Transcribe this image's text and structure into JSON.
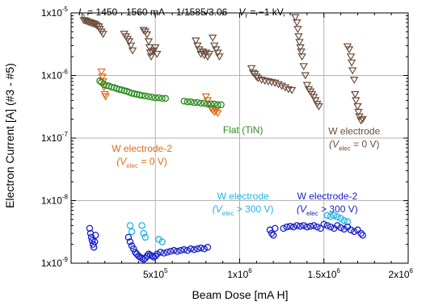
{
  "chart_data": {
    "type": "scatter",
    "title_parts": {
      "current_sym": "I",
      "current_sub": "b",
      "current_val": " = 1450 - 1560 mA",
      "fill": "1/1585/3.06",
      "volt_sym": "V",
      "volt_sub": "r",
      "volt_val": " = −1 kV,"
    },
    "xlabel": "Beam Dose [mA H]",
    "ylabel": "Electron Current [A] (#3 - #5)",
    "xlim": [
      0,
      2000000
    ],
    "ylim": [
      1e-09,
      1e-05
    ],
    "y_log": true,
    "grid": true,
    "x_ticks": [
      {
        "value": 0,
        "mant": "",
        "exp": ""
      },
      {
        "value": 500000,
        "mant": "5x10",
        "exp": "5"
      },
      {
        "value": 1000000,
        "mant": "1x10",
        "exp": "6"
      },
      {
        "value": 1500000,
        "mant": "1.5x10",
        "exp": "6"
      },
      {
        "value": 2000000,
        "mant": "2x10",
        "exp": "6"
      }
    ],
    "y_ticks": [
      {
        "value": 1e-09,
        "mant": "1x10",
        "exp": "-9"
      },
      {
        "value": 1e-08,
        "mant": "1x10",
        "exp": "-8"
      },
      {
        "value": 1e-07,
        "mant": "1x10",
        "exp": "-7"
      },
      {
        "value": 1e-06,
        "mant": "1x10",
        "exp": "-6"
      },
      {
        "value": 1e-05,
        "mant": "1x10",
        "exp": "-5"
      }
    ],
    "annotations": [
      {
        "name": "label-flat-tin",
        "color": "#2e8b22",
        "x": 1020000,
        "y": 1.2e-07,
        "lines": [
          {
            "text": "Flat (TiN)"
          }
        ]
      },
      {
        "name": "label-w-electrode-brown",
        "color": "#6b4c3b",
        "x": 1680000,
        "y": 1.15e-07,
        "lines": [
          {
            "text": "W electrode"
          },
          {
            "sym": "(V",
            "sub": "elec",
            "rest": " = 0 V)"
          }
        ]
      },
      {
        "name": "label-w-electrode2-orange",
        "color": "#e06a1b",
        "x": 420000,
        "y": 6e-08,
        "lines": [
          {
            "text": "W electrode-2"
          },
          {
            "sym": "(V",
            "sub": "elec",
            "rest": " = 0 V)"
          }
        ]
      },
      {
        "name": "label-w-electrode-cyan",
        "color": "#1fb4e6",
        "x": 1020000,
        "y": 1.05e-08,
        "lines": [
          {
            "text": "W electrode"
          },
          {
            "sym": "(V",
            "sub": "elec",
            "rest": " > 300 V)"
          }
        ]
      },
      {
        "name": "label-w-electrode2-blue",
        "color": "#1a22c8",
        "x": 1520000,
        "y": 1.05e-08,
        "lines": [
          {
            "text": "W electrode-2"
          },
          {
            "sym": "(V",
            "sub": "elec",
            "rest": " > 300 V)"
          }
        ]
      }
    ],
    "series": [
      {
        "color": "#6b4c3b",
        "marker": "triangle-down",
        "points": [
          [
            75000,
            7.6e-06
          ],
          [
            85000,
            7.5e-06
          ],
          [
            95000,
            7.3e-06
          ],
          [
            105000,
            7.1e-06
          ],
          [
            115000,
            7e-06
          ],
          [
            125000,
            6.8e-06
          ],
          [
            135000,
            6.7e-06
          ],
          [
            145000,
            6.5e-06
          ],
          [
            155000,
            6.2e-06
          ],
          [
            165000,
            6e-06
          ],
          [
            170000,
            5.5e-06
          ],
          [
            180000,
            5e-06
          ],
          [
            190000,
            4.6e-06
          ],
          [
            315000,
            4.6e-06
          ],
          [
            325000,
            4.2e-06
          ],
          [
            335000,
            3.8e-06
          ],
          [
            345000,
            3.5e-06
          ],
          [
            355000,
            3e-06
          ],
          [
            365000,
            2.5e-06
          ],
          [
            430000,
            5.3e-06
          ],
          [
            440000,
            5e-06
          ],
          [
            450000,
            4.5e-06
          ],
          [
            460000,
            3.5e-06
          ],
          [
            465000,
            2.8e-06
          ],
          [
            470000,
            2.3e-06
          ],
          [
            475000,
            2e-06
          ],
          [
            480000,
            2.4e-06
          ],
          [
            490000,
            2.5e-06
          ],
          [
            500000,
            2.8e-06
          ],
          [
            510000,
            2.2e-06
          ],
          [
            740000,
            3.6e-06
          ],
          [
            750000,
            3e-06
          ],
          [
            760000,
            2.6e-06
          ],
          [
            770000,
            2.2e-06
          ],
          [
            780000,
            2.4e-06
          ],
          [
            790000,
            2.1e-06
          ],
          [
            800000,
            2.3e-06
          ],
          [
            810000,
            2e-06
          ],
          [
            820000,
            2.2e-06
          ],
          [
            840000,
            4e-06
          ],
          [
            850000,
            3e-06
          ],
          [
            860000,
            2.6e-06
          ],
          [
            870000,
            2.3e-06
          ],
          [
            880000,
            2e-06
          ],
          [
            1070000,
            1.3e-06
          ],
          [
            1080000,
            1.1e-06
          ],
          [
            1090000,
            1.05e-06
          ],
          [
            1100000,
            9.5e-07
          ],
          [
            1110000,
            9e-07
          ],
          [
            1130000,
            8.5e-07
          ],
          [
            1150000,
            8.2e-07
          ],
          [
            1170000,
            8e-07
          ],
          [
            1190000,
            7.8e-07
          ],
          [
            1210000,
            7.6e-07
          ],
          [
            1230000,
            7.2e-07
          ],
          [
            1250000,
            6.8e-07
          ],
          [
            1270000,
            6.4e-07
          ],
          [
            1290000,
            6e-07
          ],
          [
            1310000,
            5.8e-07
          ],
          [
            1330000,
            8.5e-06
          ],
          [
            1340000,
            7e-06
          ],
          [
            1345000,
            5.5e-06
          ],
          [
            1350000,
            4.2e-06
          ],
          [
            1355000,
            3.4e-06
          ],
          [
            1360000,
            2.8e-06
          ],
          [
            1365000,
            2.4e-06
          ],
          [
            1370000,
            2e-06
          ],
          [
            1380000,
            1.4e-06
          ],
          [
            1390000,
            1e-06
          ],
          [
            1400000,
            7e-07
          ],
          [
            1410000,
            6e-07
          ],
          [
            1420000,
            5.5e-07
          ],
          [
            1430000,
            5e-07
          ],
          [
            1440000,
            4.5e-07
          ],
          [
            1450000,
            4e-07
          ],
          [
            1460000,
            3.5e-07
          ],
          [
            1470000,
            3.2e-07
          ],
          [
            1640000,
            2.9e-06
          ],
          [
            1650000,
            2.6e-06
          ],
          [
            1660000,
            2e-06
          ],
          [
            1665000,
            1.6e-06
          ],
          [
            1670000,
            1.2e-06
          ],
          [
            1680000,
            8.5e-07
          ],
          [
            1685000,
            5e-07
          ],
          [
            1690000,
            4e-07
          ],
          [
            1700000,
            3.2e-07
          ],
          [
            1705000,
            2.6e-07
          ],
          [
            1710000,
            2.2e-07
          ],
          [
            1720000,
            1.9e-07
          ],
          [
            1730000,
            2e-07
          ]
        ]
      },
      {
        "color": "#e06a1b",
        "marker": "triangle-down",
        "points": [
          [
            180000,
            1.15e-06
          ],
          [
            185000,
            9.5e-07
          ],
          [
            190000,
            8e-07
          ],
          [
            195000,
            6.5e-07
          ],
          [
            200000,
            5e-07
          ],
          [
            205000,
            4.6e-07
          ],
          [
            800000,
            4.6e-07
          ],
          [
            810000,
            4e-07
          ],
          [
            820000,
            3.5e-07
          ],
          [
            830000,
            3e-07
          ],
          [
            840000,
            2.8e-07
          ],
          [
            850000,
            2.6e-07
          ],
          [
            860000,
            2.7e-07
          ],
          [
            870000,
            2.5e-07
          ]
        ]
      },
      {
        "color": "#2e8b22",
        "marker": "circle",
        "points": [
          [
            170000,
            8.2e-07
          ],
          [
            180000,
            7.8e-07
          ],
          [
            195000,
            7.2e-07
          ],
          [
            210000,
            6.9e-07
          ],
          [
            225000,
            6.8e-07
          ],
          [
            240000,
            6.5e-07
          ],
          [
            255000,
            6.4e-07
          ],
          [
            270000,
            6.2e-07
          ],
          [
            285000,
            6e-07
          ],
          [
            300000,
            5.9e-07
          ],
          [
            315000,
            5.7e-07
          ],
          [
            330000,
            5.6e-07
          ],
          [
            345000,
            5.4e-07
          ],
          [
            360000,
            5.2e-07
          ],
          [
            375000,
            5.1e-07
          ],
          [
            390000,
            5e-07
          ],
          [
            405000,
            4.9e-07
          ],
          [
            420000,
            4.8e-07
          ],
          [
            440000,
            4.7e-07
          ],
          [
            460000,
            4.6e-07
          ],
          [
            480000,
            4.5e-07
          ],
          [
            500000,
            4.4e-07
          ],
          [
            520000,
            4.4e-07
          ],
          [
            540000,
            4.3e-07
          ],
          [
            560000,
            4.3e-07
          ],
          [
            670000,
            3.9e-07
          ],
          [
            690000,
            3.8e-07
          ],
          [
            710000,
            3.8e-07
          ],
          [
            730000,
            3.7e-07
          ],
          [
            750000,
            3.7e-07
          ],
          [
            770000,
            3.6e-07
          ],
          [
            790000,
            3.6e-07
          ],
          [
            810000,
            3.5e-07
          ],
          [
            830000,
            3.5e-07
          ],
          [
            850000,
            3.5e-07
          ],
          [
            870000,
            3.4e-07
          ],
          [
            890000,
            3.4e-07
          ]
        ]
      },
      {
        "color": "#1fb4e6",
        "marker": "circle",
        "points": [
          [
            350000,
            4e-09
          ],
          [
            360000,
            3.2e-09
          ],
          [
            420000,
            4e-09
          ],
          [
            430000,
            3e-09
          ],
          [
            440000,
            2.6e-09
          ],
          [
            520000,
            2.4e-09
          ],
          [
            540000,
            2.2e-09
          ],
          [
            1520000,
            5.8e-09
          ],
          [
            1540000,
            5.6e-09
          ],
          [
            1560000,
            5.8e-09
          ],
          [
            1580000,
            5.5e-09
          ],
          [
            1600000,
            5.2e-09
          ],
          [
            1620000,
            4.8e-09
          ],
          [
            1640000,
            4.6e-09
          ]
        ]
      },
      {
        "color": "#1a22c8",
        "marker": "circle",
        "points": [
          [
            110000,
            3.6e-09
          ],
          [
            115000,
            3e-09
          ],
          [
            120000,
            2.6e-09
          ],
          [
            125000,
            2.3e-09
          ],
          [
            130000,
            2e-09
          ],
          [
            135000,
            1.8e-09
          ],
          [
            140000,
            2.2e-09
          ],
          [
            145000,
            2.8e-09
          ],
          [
            340000,
            2.6e-09
          ],
          [
            350000,
            2.2e-09
          ],
          [
            360000,
            1.9e-09
          ],
          [
            370000,
            1.7e-09
          ],
          [
            380000,
            1.5e-09
          ],
          [
            390000,
            1.4e-09
          ],
          [
            400000,
            1.3e-09
          ],
          [
            410000,
            1.25e-09
          ],
          [
            420000,
            1.2e-09
          ],
          [
            430000,
            1.15e-09
          ],
          [
            440000,
            1.2e-09
          ],
          [
            450000,
            1.3e-09
          ],
          [
            460000,
            1.4e-09
          ],
          [
            470000,
            1.35e-09
          ],
          [
            480000,
            1.3e-09
          ],
          [
            490000,
            1.25e-09
          ],
          [
            500000,
            1.3e-09
          ],
          [
            510000,
            1.4e-09
          ],
          [
            530000,
            1.5e-09
          ],
          [
            550000,
            1.45e-09
          ],
          [
            570000,
            1.5e-09
          ],
          [
            590000,
            1.55e-09
          ],
          [
            610000,
            1.6e-09
          ],
          [
            630000,
            1.55e-09
          ],
          [
            650000,
            1.6e-09
          ],
          [
            670000,
            1.65e-09
          ],
          [
            690000,
            1.6e-09
          ],
          [
            710000,
            1.7e-09
          ],
          [
            730000,
            1.65e-09
          ],
          [
            750000,
            1.7e-09
          ],
          [
            770000,
            1.75e-09
          ],
          [
            790000,
            1.7e-09
          ],
          [
            810000,
            1.8e-09
          ],
          [
            1180000,
            3.4e-09
          ],
          [
            1190000,
            3e-09
          ],
          [
            1200000,
            2.8e-09
          ],
          [
            1210000,
            3.6e-09
          ],
          [
            1260000,
            3.6e-09
          ],
          [
            1280000,
            3.8e-09
          ],
          [
            1300000,
            3.9e-09
          ],
          [
            1320000,
            3.8e-09
          ],
          [
            1340000,
            4e-09
          ],
          [
            1360000,
            3.9e-09
          ],
          [
            1380000,
            4e-09
          ],
          [
            1400000,
            3.8e-09
          ],
          [
            1420000,
            3.9e-09
          ],
          [
            1440000,
            4e-09
          ],
          [
            1460000,
            3.8e-09
          ],
          [
            1480000,
            3.6e-09
          ],
          [
            1500000,
            4.2e-09
          ],
          [
            1520000,
            4e-09
          ],
          [
            1540000,
            3.8e-09
          ],
          [
            1560000,
            3.6e-09
          ],
          [
            1580000,
            4e-09
          ],
          [
            1600000,
            3.7e-09
          ],
          [
            1620000,
            3.5e-09
          ],
          [
            1640000,
            3.8e-09
          ],
          [
            1660000,
            3.4e-09
          ],
          [
            1680000,
            3.2e-09
          ],
          [
            1700000,
            3.4e-09
          ],
          [
            1720000,
            3e-09
          ],
          [
            1730000,
            2.8e-09
          ]
        ]
      }
    ]
  }
}
